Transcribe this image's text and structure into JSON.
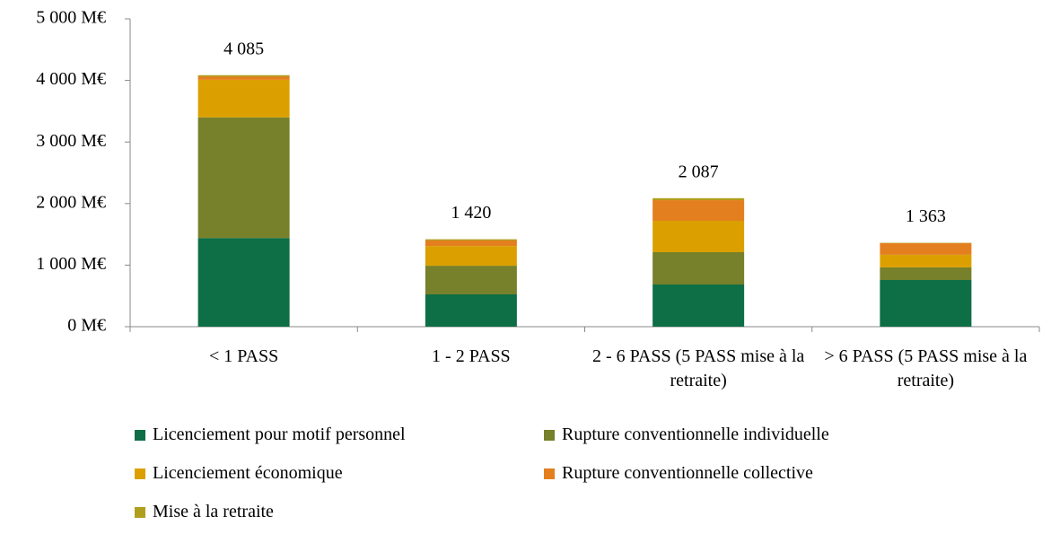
{
  "chart_data": {
    "type": "stacked_bar",
    "categories": [
      "< 1 PASS",
      "1 - 2 PASS",
      "2 - 6 PASS (5 PASS mise à la retraite)",
      "> 6 PASS (5 PASS mise à la retraite)"
    ],
    "series": [
      {
        "name": "Licenciement pour motif personnel",
        "color": "#0e6e45",
        "values": [
          1440,
          525,
          685,
          758
        ]
      },
      {
        "name": "Rupture conventionnelle individuelle",
        "color": "#77802a",
        "values": [
          1960,
          465,
          525,
          205
        ]
      },
      {
        "name": "Licenciement économique",
        "color": "#dba000",
        "values": [
          610,
          320,
          510,
          205
        ]
      },
      {
        "name": "Rupture conventionnelle collective",
        "color": "#e47f1f",
        "values": [
          50,
          90,
          335,
          190
        ]
      },
      {
        "name": "Mise à la retraite",
        "color": "#b09e1d",
        "values": [
          25,
          20,
          32,
          5
        ]
      }
    ],
    "totals": [
      4085,
      1420,
      2087,
      1363
    ],
    "total_labels": [
      "4 085",
      "1 420",
      "2 087",
      "1 363"
    ],
    "ylim": [
      0,
      5000
    ],
    "yticks": [
      {
        "value": 0,
        "label": "0 M€"
      },
      {
        "value": 1000,
        "label": "1 000 M€"
      },
      {
        "value": 2000,
        "label": "2 000 M€"
      },
      {
        "value": 3000,
        "label": "3 000 M€"
      },
      {
        "value": 4000,
        "label": "4 000 M€"
      },
      {
        "value": 5000,
        "label": "5 000 M€"
      }
    ],
    "grid": false
  }
}
